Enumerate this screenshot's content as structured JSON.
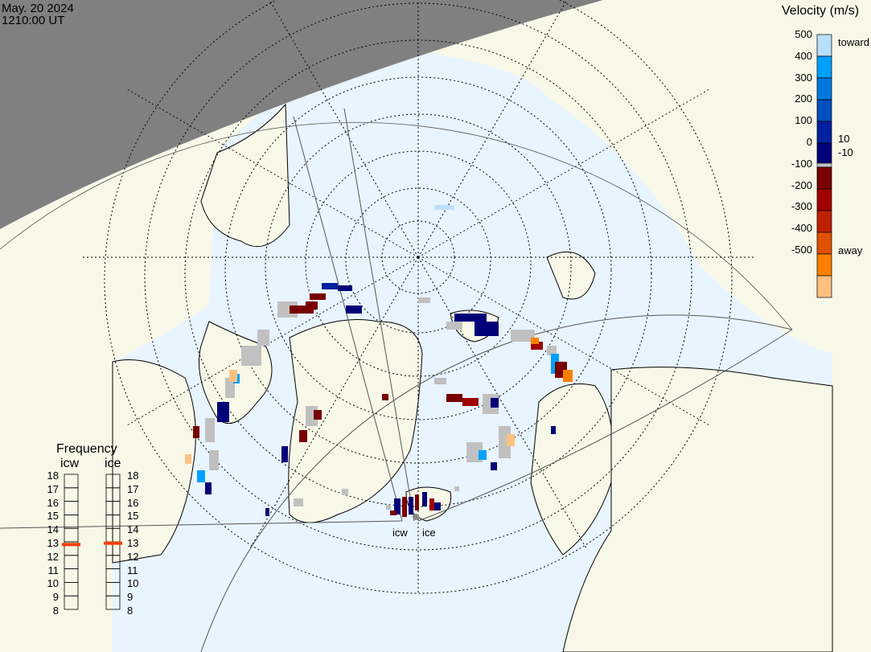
{
  "header": {
    "date": "May. 20 2024",
    "time": "1210:00 UT"
  },
  "colorbar": {
    "title": "Velocity (m/s)",
    "ticks": [
      "500",
      "400",
      "300",
      "200",
      "100",
      "0",
      "-100",
      "-200",
      "-300",
      "-400",
      "-500"
    ],
    "label_toward": "toward",
    "label_away": "away",
    "label_plus10": "10",
    "label_minus10": "-10",
    "colors_toward": [
      "#b8e0fc",
      "#00a0ff",
      "#0078e0",
      "#0050c0",
      "#0020a0",
      "#000078"
    ],
    "ground_scatter": "#c0c0c0",
    "colors_away": [
      "#780000",
      "#a00000",
      "#c02000",
      "#e05000",
      "#ff8000",
      "#ffc080"
    ]
  },
  "frequency": {
    "title": "Frequency",
    "radars": [
      {
        "name": "icw",
        "freq_mhz": 12.8
      },
      {
        "name": "ice",
        "freq_mhz": 12.9
      }
    ],
    "ticks": [
      "18",
      "17",
      "16",
      "15",
      "14",
      "13",
      "12",
      "11",
      "10",
      "9",
      "8"
    ],
    "marker_color": "#ff4000"
  },
  "map": {
    "ocean_color": "#e8f4ff",
    "land_color": "#f8f8e8",
    "night_color": "#808080",
    "radar_labels": [
      "icw",
      "ice"
    ]
  }
}
